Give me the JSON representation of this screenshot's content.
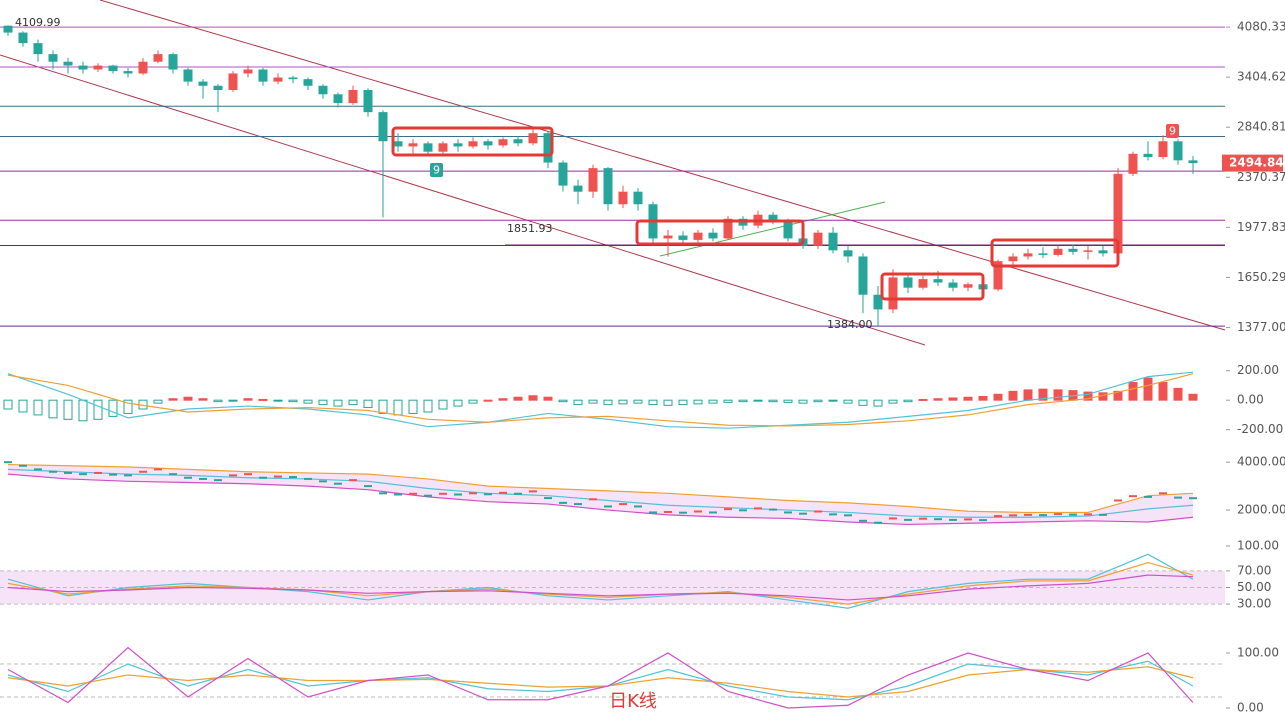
{
  "chart_data": [
    {
      "type": "candlestick",
      "log_scale": true,
      "up_color": "#ef5350",
      "down_color": "#26a69a",
      "ylim": [
        1340,
        4500
      ],
      "yticks": [
        4080.33,
        3404.62,
        2840.81,
        2370.37,
        1977.83,
        1650.29,
        {
          "value": 1377,
          "label": "1377.00"
        }
      ],
      "hlines": [
        {
          "value": 4080.33,
          "color": "#b04fc8"
        },
        {
          "value": 3531,
          "color": "#b04fc8"
        },
        {
          "value": 3064,
          "color": "#3a6d8c"
        },
        {
          "value": 2747,
          "color": "#3a6d8c"
        },
        {
          "value": 2424,
          "color": "#9c2a9c"
        },
        {
          "value": 2029,
          "color": "#9c2a9c"
        },
        {
          "value": 1852,
          "color": "#6a2a6a"
        },
        {
          "value": 1384,
          "color": "#6a2a9c"
        }
      ],
      "annotations": [
        "4109.99",
        "1851.93",
        "1384.00"
      ],
      "signals": [
        {
          "text": "9",
          "color": "#26a69a"
        },
        {
          "text": "9",
          "color": "#ef5350"
        }
      ],
      "caption": "日K线",
      "candles": [
        [
          4100,
          4110,
          3950,
          4000
        ],
        [
          4000,
          4020,
          3800,
          3850
        ],
        [
          3850,
          3900,
          3600,
          3700
        ],
        [
          3700,
          3750,
          3500,
          3600
        ],
        [
          3600,
          3650,
          3450,
          3550
        ],
        [
          3550,
          3600,
          3450,
          3500
        ],
        [
          3500,
          3580,
          3470,
          3550
        ],
        [
          3550,
          3560,
          3450,
          3480
        ],
        [
          3480,
          3520,
          3400,
          3450
        ],
        [
          3450,
          3650,
          3430,
          3600
        ],
        [
          3600,
          3750,
          3580,
          3700
        ],
        [
          3700,
          3720,
          3450,
          3500
        ],
        [
          3500,
          3520,
          3300,
          3350
        ],
        [
          3350,
          3380,
          3150,
          3300
        ],
        [
          3300,
          3320,
          3000,
          3250
        ],
        [
          3250,
          3480,
          3230,
          3450
        ],
        [
          3450,
          3550,
          3400,
          3500
        ],
        [
          3500,
          3520,
          3300,
          3350
        ],
        [
          3350,
          3450,
          3320,
          3400
        ],
        [
          3400,
          3420,
          3330,
          3380
        ],
        [
          3380,
          3400,
          3250,
          3300
        ],
        [
          3300,
          3320,
          3150,
          3200
        ],
        [
          3200,
          3220,
          3050,
          3100
        ],
        [
          3100,
          3300,
          3080,
          3250
        ],
        [
          3250,
          3270,
          2950,
          3000
        ],
        [
          3000,
          3020,
          2050,
          2700
        ],
        [
          2700,
          2780,
          2600,
          2650
        ],
        [
          2650,
          2720,
          2580,
          2680
        ],
        [
          2680,
          2700,
          2560,
          2600
        ],
        [
          2600,
          2700,
          2580,
          2680
        ],
        [
          2680,
          2720,
          2600,
          2650
        ],
        [
          2650,
          2740,
          2630,
          2700
        ],
        [
          2700,
          2720,
          2620,
          2660
        ],
        [
          2660,
          2740,
          2640,
          2720
        ],
        [
          2720,
          2750,
          2650,
          2680
        ],
        [
          2680,
          2850,
          2660,
          2780
        ],
        [
          2780,
          2800,
          2450,
          2500
        ],
        [
          2500,
          2520,
          2250,
          2300
        ],
        [
          2300,
          2350,
          2150,
          2250
        ],
        [
          2250,
          2480,
          2200,
          2450
        ],
        [
          2450,
          2460,
          2100,
          2150
        ],
        [
          2150,
          2300,
          2120,
          2250
        ],
        [
          2250,
          2280,
          2100,
          2150
        ],
        [
          2150,
          2170,
          1850,
          1900
        ],
        [
          1900,
          1960,
          1780,
          1920
        ],
        [
          1920,
          1950,
          1860,
          1890
        ],
        [
          1890,
          1960,
          1870,
          1940
        ],
        [
          1940,
          1970,
          1880,
          1900
        ],
        [
          1900,
          2060,
          1890,
          2040
        ],
        [
          2040,
          2060,
          1960,
          1990
        ],
        [
          1990,
          2100,
          1970,
          2070
        ],
        [
          2070,
          2090,
          2000,
          2020
        ],
        [
          2020,
          2040,
          1880,
          1900
        ],
        [
          1900,
          1920,
          1830,
          1850
        ],
        [
          1850,
          1960,
          1830,
          1940
        ],
        [
          1940,
          1980,
          1800,
          1820
        ],
        [
          1820,
          1850,
          1740,
          1780
        ],
        [
          1780,
          1800,
          1450,
          1550
        ],
        [
          1550,
          1600,
          1384,
          1470
        ],
        [
          1470,
          1700,
          1450,
          1650
        ],
        [
          1650,
          1670,
          1560,
          1590
        ],
        [
          1590,
          1660,
          1580,
          1640
        ],
        [
          1640,
          1690,
          1600,
          1620
        ],
        [
          1620,
          1640,
          1570,
          1590
        ],
        [
          1590,
          1620,
          1570,
          1610
        ],
        [
          1610,
          1630,
          1560,
          1580
        ],
        [
          1580,
          1760,
          1570,
          1750
        ],
        [
          1750,
          1800,
          1720,
          1780
        ],
        [
          1780,
          1830,
          1760,
          1800
        ],
        [
          1800,
          1840,
          1770,
          1790
        ],
        [
          1790,
          1850,
          1780,
          1830
        ],
        [
          1830,
          1860,
          1790,
          1810
        ],
        [
          1810,
          1850,
          1760,
          1820
        ],
        [
          1820,
          1850,
          1780,
          1800
        ],
        [
          1800,
          2450,
          1790,
          2400
        ],
        [
          2400,
          2600,
          2380,
          2580
        ],
        [
          2580,
          2700,
          2520,
          2550
        ],
        [
          2550,
          2760,
          2530,
          2700
        ],
        [
          2700,
          2720,
          2480,
          2520
        ],
        [
          2520,
          2560,
          2400,
          2494.84
        ]
      ]
    },
    {
      "type": "macd",
      "ylim": [
        -250,
        300
      ],
      "yticks": [
        {
          "value": 200,
          "label": "200.00"
        },
        {
          "value": 0,
          "label": "0.00"
        },
        {
          "value": -200,
          "label": "-200.00"
        }
      ],
      "up_color": "#ef5350",
      "down_color": "#26a69a",
      "histogram": [
        -60,
        -80,
        -100,
        -120,
        -130,
        -140,
        -130,
        -110,
        -90,
        -60,
        -20,
        10,
        20,
        10,
        -10,
        -5,
        10,
        5,
        -5,
        -10,
        -20,
        -30,
        -40,
        -30,
        -50,
        -90,
        -100,
        -90,
        -80,
        -60,
        -40,
        -20,
        0,
        10,
        20,
        30,
        20,
        -10,
        -30,
        -20,
        -30,
        -25,
        -20,
        -30,
        -35,
        -30,
        -25,
        -20,
        -15,
        -10,
        -5,
        -10,
        -15,
        -20,
        -10,
        -5,
        -20,
        -35,
        -40,
        -20,
        -10,
        5,
        10,
        15,
        20,
        25,
        40,
        60,
        70,
        75,
        70,
        65,
        55,
        50,
        60,
        120,
        150,
        120,
        80,
        40
      ],
      "x": [
        0,
        4,
        8,
        12,
        16,
        20,
        24,
        28,
        32,
        36,
        40,
        44,
        48,
        52,
        56,
        60,
        64,
        68,
        72,
        76,
        79
      ],
      "series": [
        {
          "color": "#4fc3d9",
          "values": [
            180,
            40,
            -120,
            -60,
            -40,
            -60,
            -100,
            -180,
            -150,
            -90,
            -130,
            -180,
            -190,
            -170,
            -150,
            -110,
            -70,
            0,
            40,
            160,
            190
          ]
        },
        {
          "color": "#f0a030",
          "values": [
            170,
            100,
            -20,
            -80,
            -60,
            -50,
            -70,
            -130,
            -150,
            -120,
            -110,
            -140,
            -170,
            -175,
            -165,
            -140,
            -100,
            -30,
            10,
            100,
            180
          ]
        }
      ]
    },
    {
      "type": "boll",
      "ylim": [
        1000,
        4300
      ],
      "yticks": [
        {
          "value": 4000,
          "label": "4000.00"
        },
        {
          "value": 2000,
          "label": "2000.00"
        }
      ],
      "x": [
        0,
        4,
        8,
        12,
        16,
        20,
        24,
        28,
        32,
        36,
        40,
        44,
        48,
        52,
        56,
        60,
        64,
        68,
        72,
        76,
        79
      ],
      "series": [
        {
          "color": "#f0a030",
          "values": [
            3900,
            3850,
            3800,
            3700,
            3600,
            3550,
            3500,
            3300,
            3000,
            2900,
            2800,
            2700,
            2550,
            2400,
            2300,
            2150,
            1950,
            1900,
            1900,
            2600,
            2700
          ]
        },
        {
          "color": "#4fc3d9",
          "values": [
            3700,
            3600,
            3500,
            3450,
            3350,
            3300,
            3200,
            2900,
            2700,
            2600,
            2400,
            2200,
            2100,
            2000,
            1900,
            1750,
            1700,
            1700,
            1750,
            2050,
            2200
          ]
        },
        {
          "color": "#d04fc8",
          "values": [
            3500,
            3300,
            3200,
            3150,
            3100,
            3000,
            2850,
            2550,
            2350,
            2250,
            2000,
            1800,
            1700,
            1650,
            1500,
            1400,
            1450,
            1500,
            1550,
            1500,
            1700
          ]
        }
      ]
    },
    {
      "type": "rsi",
      "ylim": [
        0,
        100
      ],
      "yticks": [
        {
          "value": 100,
          "label": "100.00"
        },
        {
          "value": 70,
          "label": "70.00"
        },
        {
          "value": 50,
          "label": "50.00"
        },
        {
          "value": 30,
          "label": "30.00"
        }
      ],
      "x": [
        0,
        4,
        8,
        12,
        16,
        20,
        24,
        28,
        32,
        36,
        40,
        44,
        48,
        52,
        56,
        60,
        64,
        68,
        72,
        76,
        79
      ],
      "series": [
        {
          "color": "#4fc3d9",
          "values": [
            60,
            40,
            50,
            55,
            50,
            45,
            35,
            45,
            50,
            40,
            35,
            40,
            45,
            35,
            25,
            45,
            55,
            60,
            60,
            90,
            60
          ]
        },
        {
          "color": "#f0a030",
          "values": [
            55,
            42,
            48,
            52,
            50,
            47,
            40,
            45,
            48,
            42,
            38,
            42,
            44,
            38,
            30,
            42,
            52,
            58,
            58,
            80,
            65
          ]
        },
        {
          "color": "#d04fc8",
          "values": [
            50,
            45,
            47,
            50,
            49,
            47,
            43,
            45,
            46,
            43,
            40,
            42,
            43,
            40,
            35,
            40,
            48,
            52,
            55,
            65,
            63
          ]
        }
      ]
    },
    {
      "type": "kdj",
      "ylim": [
        -10,
        120
      ],
      "guides": [
        80,
        20
      ],
      "yticks": [
        {
          "value": 100,
          "label": "100.00"
        },
        {
          "value": 0,
          "label": "0.00"
        }
      ],
      "x": [
        0,
        4,
        8,
        12,
        16,
        20,
        24,
        28,
        32,
        36,
        40,
        44,
        48,
        52,
        56,
        60,
        64,
        68,
        72,
        76,
        79
      ],
      "series": [
        {
          "color": "#4fc3d9",
          "values": [
            60,
            30,
            80,
            40,
            70,
            40,
            50,
            55,
            35,
            30,
            40,
            70,
            40,
            20,
            15,
            40,
            80,
            70,
            60,
            85,
            40
          ]
        },
        {
          "color": "#f0a030",
          "values": [
            55,
            40,
            60,
            50,
            60,
            50,
            50,
            52,
            45,
            38,
            40,
            55,
            45,
            30,
            20,
            30,
            60,
            70,
            65,
            75,
            55
          ]
        },
        {
          "color": "#d04fc8",
          "values": [
            70,
            10,
            110,
            20,
            90,
            20,
            50,
            60,
            15,
            15,
            40,
            100,
            30,
            0,
            5,
            60,
            100,
            70,
            50,
            100,
            10
          ]
        }
      ]
    }
  ]
}
